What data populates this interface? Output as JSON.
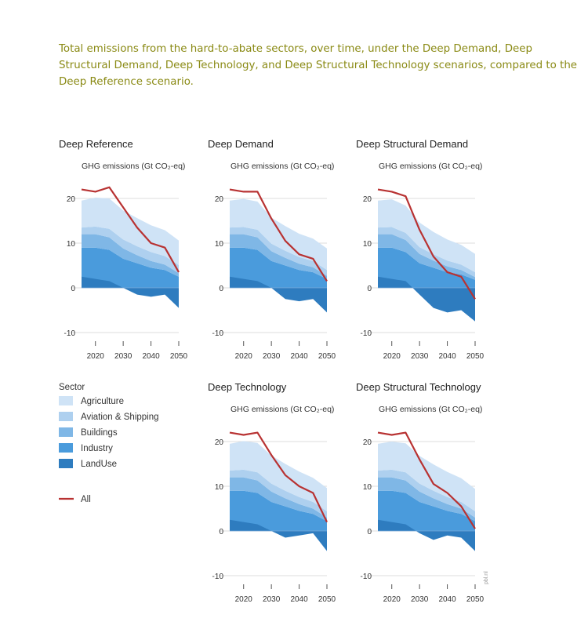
{
  "caption": "Total emissions from the hard-to-abate sectors, over time, under the Deep Demand, Deep Structural Demand, Deep Technology, and Deep Structural Technology scenarios, compared to the Deep Reference scenario.",
  "credit": "pbl.nl",
  "colors": {
    "Agriculture": "#cfe3f6",
    "Aviation & Shipping": "#aed0ef",
    "Buildings": "#7fb7e6",
    "Industry": "#4a9bdc",
    "LandUse": "#2e7cbf",
    "All": "#b83232"
  },
  "legend": {
    "title": "Sector",
    "items": [
      "Agriculture",
      "Aviation & Shipping",
      "Buildings",
      "Industry",
      "LandUse"
    ],
    "all_label": "All"
  },
  "chart_data": [
    {
      "type": "area",
      "title": "Deep Reference",
      "ylabel": "GHG emissions (Gt CO₂-eq)",
      "x": [
        2015,
        2020,
        2025,
        2030,
        2035,
        2040,
        2045,
        2050
      ],
      "xticks": [
        2020,
        2030,
        2040,
        2050
      ],
      "yticks": [
        -10,
        0,
        10,
        20
      ],
      "ylim": [
        -11,
        23
      ],
      "series": [
        {
          "name": "Industry",
          "values": [
            9,
            9,
            8.5,
            6.5,
            5.5,
            4.5,
            4,
            2.5
          ]
        },
        {
          "name": "Buildings",
          "values": [
            3,
            3,
            2.8,
            2.3,
            1.8,
            1.5,
            1.2,
            0.8
          ]
        },
        {
          "name": "Aviation & Shipping",
          "values": [
            1.5,
            1.7,
            1.9,
            2,
            2,
            2,
            1.9,
            1.8
          ]
        },
        {
          "name": "Agriculture",
          "values": [
            6,
            6.5,
            6.8,
            6.5,
            6.3,
            6,
            5.8,
            5.5
          ]
        },
        {
          "name": "LandUse",
          "values": [
            2.5,
            2,
            1.5,
            0,
            -1.5,
            -2,
            -1.5,
            -4.5
          ]
        }
      ],
      "all": [
        22,
        21.5,
        22.5,
        18,
        13.5,
        10,
        9,
        3.5
      ]
    },
    {
      "type": "area",
      "title": "Deep Demand",
      "ylabel": "GHG emissions (Gt CO₂-eq)",
      "x": [
        2015,
        2020,
        2025,
        2030,
        2035,
        2040,
        2045,
        2050
      ],
      "xticks": [
        2020,
        2030,
        2040,
        2050
      ],
      "yticks": [
        -10,
        0,
        10,
        20
      ],
      "ylim": [
        -11,
        23
      ],
      "series": [
        {
          "name": "Industry",
          "values": [
            9,
            9,
            8.5,
            6,
            5,
            4,
            3.5,
            2
          ]
        },
        {
          "name": "Buildings",
          "values": [
            3,
            3,
            2.8,
            2.2,
            1.7,
            1.4,
            1.1,
            0.7
          ]
        },
        {
          "name": "Aviation & Shipping",
          "values": [
            1.5,
            1.6,
            1.7,
            1.7,
            1.6,
            1.5,
            1.4,
            1.3
          ]
        },
        {
          "name": "Agriculture",
          "values": [
            6,
            6.3,
            6.3,
            5.8,
            5.5,
            5.2,
            5,
            4.8
          ]
        },
        {
          "name": "LandUse",
          "values": [
            2.5,
            2,
            1.5,
            0,
            -2.5,
            -3,
            -2.5,
            -5.5
          ]
        }
      ],
      "all": [
        22,
        21.5,
        21.5,
        15.5,
        10.5,
        7.5,
        6.5,
        1.5
      ]
    },
    {
      "type": "area",
      "title": "Deep Structural Demand",
      "ylabel": "GHG emissions (Gt CO₂-eq)",
      "x": [
        2015,
        2020,
        2025,
        2030,
        2035,
        2040,
        2045,
        2050
      ],
      "xticks": [
        2020,
        2030,
        2040,
        2050
      ],
      "yticks": [
        -10,
        0,
        10,
        20
      ],
      "ylim": [
        -11,
        23
      ],
      "series": [
        {
          "name": "Industry",
          "values": [
            9,
            9,
            8,
            5.5,
            4.5,
            3.5,
            3,
            1.8
          ]
        },
        {
          "name": "Buildings",
          "values": [
            3,
            3,
            2.7,
            2.1,
            1.6,
            1.3,
            1,
            0.6
          ]
        },
        {
          "name": "Aviation & Shipping",
          "values": [
            1.5,
            1.6,
            1.6,
            1.5,
            1.4,
            1.3,
            1.2,
            1.1
          ]
        },
        {
          "name": "Agriculture",
          "values": [
            6,
            6.2,
            6.1,
            5.5,
            5,
            4.7,
            4.4,
            4.1
          ]
        },
        {
          "name": "LandUse",
          "values": [
            2.5,
            2,
            1.5,
            -1.5,
            -4.5,
            -5.5,
            -5,
            -7.5
          ]
        }
      ],
      "all": [
        22,
        21.5,
        20.5,
        13,
        7,
        3.5,
        2.5,
        -2.5
      ]
    },
    {
      "type": "area",
      "title": "Deep Technology",
      "ylabel": "GHG emissions (Gt CO₂-eq)",
      "x": [
        2015,
        2020,
        2025,
        2030,
        2035,
        2040,
        2045,
        2050
      ],
      "xticks": [
        2020,
        2030,
        2040,
        2050
      ],
      "yticks": [
        -10,
        0,
        10,
        20
      ],
      "ylim": [
        -11,
        23
      ],
      "series": [
        {
          "name": "Industry",
          "values": [
            9,
            9,
            8.5,
            6.5,
            5.5,
            4.5,
            3.8,
            2.2
          ]
        },
        {
          "name": "Buildings",
          "values": [
            3,
            3,
            2.8,
            2.3,
            1.8,
            1.5,
            1.2,
            0.8
          ]
        },
        {
          "name": "Aviation & Shipping",
          "values": [
            1.5,
            1.7,
            1.8,
            1.8,
            1.7,
            1.6,
            1.5,
            1.4
          ]
        },
        {
          "name": "Agriculture",
          "values": [
            6,
            6.4,
            6.6,
            6.3,
            6,
            5.7,
            5.4,
            5.2
          ]
        },
        {
          "name": "LandUse",
          "values": [
            2.5,
            2,
            1.5,
            0,
            -1.5,
            -1,
            -0.5,
            -4.5
          ]
        }
      ],
      "all": [
        22,
        21.5,
        22,
        17,
        12.5,
        10,
        8.5,
        2
      ]
    },
    {
      "type": "area",
      "title": "Deep Structural Technology",
      "ylabel": "GHG emissions (Gt CO₂-eq)",
      "x": [
        2015,
        2020,
        2025,
        2030,
        2035,
        2040,
        2045,
        2050
      ],
      "xticks": [
        2020,
        2030,
        2040,
        2050
      ],
      "yticks": [
        -10,
        0,
        10,
        20
      ],
      "ylim": [
        -11,
        23
      ],
      "series": [
        {
          "name": "Industry",
          "values": [
            9,
            9,
            8.5,
            6.5,
            5.5,
            4.5,
            3.8,
            2.2
          ]
        },
        {
          "name": "Buildings",
          "values": [
            3,
            3,
            2.8,
            2.3,
            1.8,
            1.5,
            1.2,
            0.8
          ]
        },
        {
          "name": "Aviation & Shipping",
          "values": [
            1.5,
            1.7,
            1.8,
            1.8,
            1.7,
            1.6,
            1.5,
            1.4
          ]
        },
        {
          "name": "Agriculture",
          "values": [
            6,
            6.3,
            6.5,
            6.2,
            5.9,
            5.6,
            5.3,
            5
          ]
        },
        {
          "name": "LandUse",
          "values": [
            2.5,
            2,
            1.5,
            -0.5,
            -2,
            -1,
            -1.5,
            -4.5
          ]
        }
      ],
      "all": [
        22,
        21.5,
        22,
        16,
        10.5,
        8.5,
        5.5,
        0.5
      ]
    }
  ]
}
